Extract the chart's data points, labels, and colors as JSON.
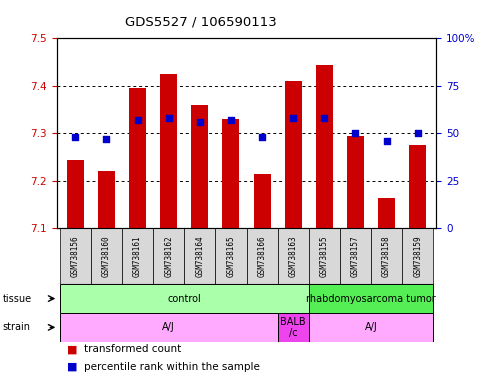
{
  "title": "GDS5527 / 106590113",
  "samples": [
    "GSM738156",
    "GSM738160",
    "GSM738161",
    "GSM738162",
    "GSM738164",
    "GSM738165",
    "GSM738166",
    "GSM738163",
    "GSM738155",
    "GSM738157",
    "GSM738158",
    "GSM738159"
  ],
  "red_values": [
    7.245,
    7.22,
    7.395,
    7.425,
    7.36,
    7.33,
    7.215,
    7.41,
    7.445,
    7.295,
    7.165,
    7.275
  ],
  "blue_values": [
    48,
    47,
    57,
    58,
    56,
    57,
    48,
    58,
    58,
    50,
    46,
    50
  ],
  "ylim_left": [
    7.1,
    7.5
  ],
  "ylim_right": [
    0,
    100
  ],
  "yticks_left": [
    7.1,
    7.2,
    7.3,
    7.4,
    7.5
  ],
  "yticks_right": [
    0,
    25,
    50,
    75,
    100
  ],
  "bar_color": "#cc0000",
  "dot_color": "#0000cc",
  "bar_bottom": 7.1,
  "tissue_groups": [
    {
      "label": "control",
      "start": 0,
      "end": 8,
      "color": "#aaffaa"
    },
    {
      "label": "rhabdomyosarcoma tumor",
      "start": 8,
      "end": 12,
      "color": "#55ee55"
    }
  ],
  "strain_groups": [
    {
      "label": "A/J",
      "start": 0,
      "end": 7,
      "color": "#ffaaff"
    },
    {
      "label": "BALB\n/c",
      "start": 7,
      "end": 8,
      "color": "#ee44ee"
    },
    {
      "label": "A/J",
      "start": 8,
      "end": 12,
      "color": "#ffaaff"
    }
  ],
  "legend_items": [
    {
      "label": "transformed count",
      "color": "#cc0000"
    },
    {
      "label": "percentile rank within the sample",
      "color": "#0000cc"
    }
  ],
  "bar_width": 0.55,
  "dot_size": 20,
  "left_color": "#cc0000",
  "right_color": "#0000cc"
}
